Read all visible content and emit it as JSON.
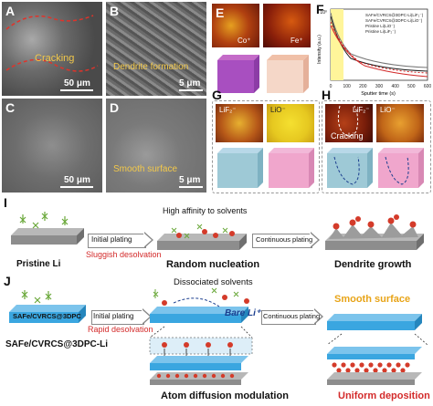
{
  "panels": {
    "A": {
      "letter": "A",
      "annotation": "Cracking",
      "scale": "50 μm"
    },
    "B": {
      "letter": "B",
      "annotation": "Dendrite formation",
      "scale": "5 μm"
    },
    "C": {
      "letter": "C",
      "scale": "50 μm"
    },
    "D": {
      "letter": "D",
      "annotation": "Smooth surface",
      "scale": "5 μm"
    },
    "E": {
      "letter": "E",
      "map1": "Co⁺",
      "map2": "Fe⁺"
    },
    "F": {
      "letter": "F",
      "ylabel": "Intensity (a.u.)",
      "xlabel": "Sputter time (s)",
      "ytick": "10⁰",
      "xticks": [
        "0",
        "100",
        "200",
        "300",
        "400",
        "500",
        "600"
      ],
      "legend": [
        "SAFe/CVRCS@3DPC-Li(LiF₂⁻)",
        "SAFe/CVRCS@3DPC-Li(LiO⁻)",
        "Pristine Li(LiO⁻)",
        "Pristine Li(LiF₂⁻)"
      ]
    },
    "G": {
      "letter": "G",
      "map1": "LiF₂⁻",
      "map2": "LiO⁻"
    },
    "H": {
      "letter": "H",
      "map1": "LiF₂⁻",
      "map2": "LiO⁻",
      "annotation": "Cracking"
    }
  },
  "schemeI": {
    "letter": "I",
    "substrate": "Pristine Li",
    "arrow1": "Initial plating",
    "arrow1_note": "Sluggish desolvation",
    "top_note": "High affinity to solvents",
    "stage2": "Random nucleation",
    "arrow2": "Continuous plating",
    "stage3": "Dendrite growth"
  },
  "schemeJ": {
    "letter": "J",
    "substrate": "SAFe/CVRCS@3DPC",
    "substrate_full": "SAFe/CVRCS@3DPC-Li",
    "arrow1": "Initial plating",
    "arrow1_note": "Rapid desolvation",
    "top_note": "Dissociated solvents",
    "bare_li": "Bare Li⁺",
    "stage2": "Atom diffusion modulation",
    "arrow2": "Continuous plating",
    "smooth": "Smooth surface",
    "stage3": "Uniform deposition"
  },
  "colors": {
    "red": "#d32a2a",
    "yellow": "#f3c94a",
    "blue_slab": "#3aa6e0",
    "gray_slab": "#8d8d8d",
    "navy_text": "#1c3f8f"
  }
}
